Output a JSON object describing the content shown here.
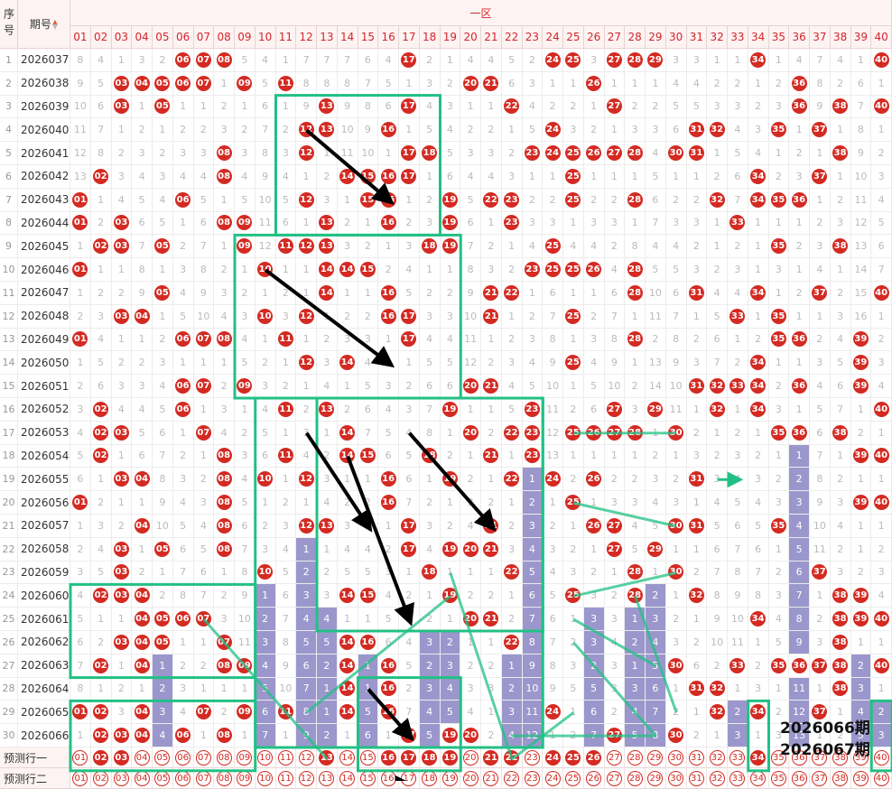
{
  "header": {
    "seq_label": "序号",
    "period_label": "期号",
    "zone_label": "一区",
    "columns": [
      "01",
      "02",
      "03",
      "04",
      "05",
      "06",
      "07",
      "08",
      "09",
      "10",
      "11",
      "12",
      "13",
      "14",
      "15",
      "16",
      "17",
      "18",
      "19",
      "20",
      "21",
      "22",
      "23",
      "24",
      "25",
      "26",
      "27",
      "28",
      "29",
      "30",
      "31",
      "32",
      "33",
      "34",
      "35",
      "36",
      "37",
      "38",
      "39",
      "40"
    ]
  },
  "rows": [
    {
      "seq": "1",
      "period": "2026037",
      "cells": [
        8,
        4,
        1,
        3,
        2,
        "06",
        "07",
        "08",
        5,
        4,
        1,
        7,
        7,
        7,
        6,
        4,
        "17",
        2,
        1,
        4,
        4,
        5,
        2,
        "24",
        "25",
        3,
        "27",
        "28",
        "29",
        3,
        3,
        1,
        1,
        "34",
        1,
        4,
        7,
        4,
        1,
        "40"
      ]
    },
    {
      "seq": "2",
      "period": "2026038",
      "cells": [
        9,
        5,
        "03",
        "04",
        "05",
        "06",
        "07",
        1,
        "09",
        5,
        "11",
        8,
        8,
        8,
        7,
        5,
        1,
        3,
        2,
        "20",
        "21",
        6,
        3,
        1,
        1,
        "26",
        1,
        1,
        1,
        4,
        4,
        2,
        2,
        1,
        2,
        "36",
        8,
        2,
        6,
        1
      ]
    },
    {
      "seq": "3",
      "period": "2026039",
      "cells": [
        10,
        6,
        "03",
        1,
        "05",
        1,
        1,
        2,
        1,
        6,
        1,
        9,
        "13",
        9,
        8,
        6,
        "17",
        4,
        3,
        1,
        1,
        "22",
        4,
        2,
        2,
        1,
        "27",
        2,
        2,
        5,
        5,
        3,
        3,
        2,
        3,
        "36",
        9,
        "38",
        7,
        "40"
      ]
    },
    {
      "seq": "4",
      "period": "2026040",
      "cells": [
        11,
        7,
        1,
        2,
        1,
        2,
        2,
        3,
        2,
        7,
        2,
        "12",
        "13",
        10,
        9,
        "16",
        1,
        5,
        4,
        2,
        2,
        1,
        5,
        "24",
        3,
        2,
        1,
        3,
        3,
        6,
        "31",
        "32",
        4,
        3,
        "35",
        1,
        "37",
        1,
        8,
        1
      ]
    },
    {
      "seq": "5",
      "period": "2026041",
      "cells": [
        12,
        8,
        2,
        3,
        2,
        3,
        3,
        "08",
        3,
        8,
        3,
        "12",
        1,
        11,
        10,
        1,
        "17",
        "18",
        5,
        3,
        3,
        2,
        "23",
        "24",
        "25",
        "26",
        "27",
        "28",
        4,
        "30",
        "31",
        1,
        5,
        4,
        1,
        2,
        1,
        "38",
        9,
        2
      ]
    },
    {
      "seq": "6",
      "period": "2026042",
      "cells": [
        13,
        "02",
        3,
        4,
        3,
        4,
        4,
        "08",
        4,
        9,
        4,
        1,
        2,
        "14",
        "15",
        "16",
        "17",
        1,
        6,
        4,
        4,
        3,
        1,
        1,
        "25",
        1,
        1,
        1,
        5,
        1,
        1,
        2,
        6,
        "34",
        2,
        3,
        "37",
        1,
        10,
        3
      ]
    },
    {
      "seq": "7",
      "period": "2026043",
      "cells": [
        "01",
        1,
        4,
        5,
        4,
        "06",
        5,
        1,
        5,
        10,
        5,
        "12",
        3,
        1,
        "15",
        "16",
        1,
        2,
        "19",
        5,
        "22",
        "23",
        2,
        2,
        "25",
        2,
        2,
        "28",
        6,
        2,
        2,
        "32",
        7,
        "34",
        "35",
        "36",
        1,
        2,
        11,
        4
      ]
    },
    {
      "seq": "8",
      "period": "2026044",
      "cells": [
        "01",
        2,
        "03",
        6,
        5,
        1,
        6,
        "08",
        "09",
        11,
        6,
        1,
        "13",
        2,
        1,
        "16",
        2,
        3,
        "19",
        6,
        1,
        "23",
        3,
        3,
        1,
        3,
        3,
        1,
        7,
        3,
        3,
        1,
        "33",
        1,
        1,
        1,
        2,
        3,
        12,
        5
      ]
    },
    {
      "seq": "9",
      "period": "2026045",
      "cells": [
        1,
        "02",
        "03",
        7,
        "05",
        2,
        7,
        1,
        "09",
        12,
        "11",
        "12",
        "13",
        3,
        2,
        1,
        3,
        "18",
        "19",
        7,
        2,
        1,
        4,
        "25",
        4,
        4,
        2,
        8,
        4,
        4,
        2,
        1,
        2,
        1,
        "35",
        2,
        3,
        "38",
        13,
        6
      ]
    },
    {
      "seq": "10",
      "period": "2026046",
      "cells": [
        "01",
        1,
        1,
        8,
        1,
        3,
        8,
        2,
        1,
        "10",
        1,
        1,
        "14",
        "14",
        "15",
        2,
        4,
        1,
        1,
        8,
        3,
        2,
        "23",
        "25",
        "25",
        "26",
        4,
        "28",
        5,
        5,
        3,
        2,
        3,
        1,
        3,
        1,
        4,
        1,
        14,
        7
      ]
    },
    {
      "seq": "11",
      "period": "2026047",
      "cells": [
        1,
        2,
        2,
        9,
        "05",
        4,
        9,
        3,
        2,
        1,
        2,
        1,
        "14",
        1,
        1,
        "16",
        5,
        2,
        2,
        9,
        "21",
        "22",
        1,
        6,
        1,
        1,
        6,
        "28",
        10,
        6,
        "31",
        4,
        4,
        "34",
        1,
        2,
        "37",
        2,
        15,
        "40"
      ]
    },
    {
      "seq": "12",
      "period": "2026048",
      "cells": [
        2,
        3,
        "03",
        "04",
        1,
        5,
        10,
        4,
        3,
        "10",
        3,
        "12",
        1,
        2,
        2,
        "16",
        "17",
        3,
        3,
        10,
        "21",
        1,
        2,
        7,
        "25",
        2,
        7,
        1,
        11,
        7,
        1,
        5,
        "33",
        1,
        "35",
        1,
        1,
        3,
        16,
        1
      ]
    },
    {
      "seq": "13",
      "period": "2026049",
      "cells": [
        "01",
        4,
        1,
        1,
        2,
        "06",
        "07",
        "08",
        4,
        1,
        "11",
        1,
        2,
        3,
        3,
        1,
        "17",
        4,
        4,
        11,
        1,
        2,
        3,
        8,
        1,
        3,
        8,
        "28",
        2,
        8,
        2,
        6,
        1,
        2,
        "35",
        "36",
        2,
        4,
        "39",
        2
      ]
    },
    {
      "seq": "14",
      "period": "2026050",
      "cells": [
        1,
        5,
        2,
        2,
        3,
        1,
        1,
        1,
        5,
        2,
        1,
        "12",
        3,
        "14",
        4,
        2,
        1,
        5,
        5,
        12,
        2,
        3,
        4,
        9,
        "25",
        4,
        9,
        1,
        13,
        9,
        3,
        7,
        2,
        "34",
        1,
        1,
        3,
        5,
        "39",
        3
      ]
    },
    {
      "seq": "15",
      "period": "2026051",
      "cells": [
        2,
        6,
        3,
        3,
        4,
        "06",
        "07",
        2,
        "09",
        3,
        2,
        1,
        4,
        1,
        5,
        3,
        2,
        6,
        6,
        "20",
        "21",
        4,
        5,
        10,
        1,
        5,
        10,
        2,
        14,
        10,
        "31",
        "32",
        "33",
        "34",
        2,
        "36",
        4,
        6,
        "39",
        4
      ]
    },
    {
      "seq": "16",
      "period": "2026052",
      "cells": [
        3,
        "02",
        4,
        4,
        5,
        "06",
        1,
        3,
        1,
        4,
        "11",
        2,
        "13",
        2,
        6,
        4,
        3,
        7,
        "19",
        1,
        1,
        5,
        "23",
        11,
        2,
        6,
        "27",
        3,
        "29",
        11,
        1,
        "32",
        1,
        "34",
        3,
        1,
        5,
        7,
        1,
        "40"
      ]
    },
    {
      "seq": "17",
      "period": "2026053",
      "cells": [
        4,
        "02",
        "03",
        5,
        6,
        1,
        "07",
        4,
        2,
        5,
        1,
        3,
        1,
        "14",
        7,
        5,
        4,
        8,
        1,
        "20",
        2,
        "22",
        "23",
        12,
        "25",
        "26",
        "27",
        "28",
        1,
        "30",
        2,
        1,
        2,
        1,
        "35",
        "36",
        6,
        "38",
        2,
        1
      ]
    },
    {
      "seq": "18",
      "period": "2026054",
      "cells": [
        5,
        "02",
        1,
        6,
        7,
        2,
        1,
        "08",
        3,
        6,
        "11",
        4,
        2,
        "14",
        "15",
        6,
        5,
        "18",
        2,
        1,
        "21",
        1,
        "23",
        13,
        1,
        1,
        1,
        1,
        2,
        1,
        3,
        2,
        3,
        2,
        1,
        1,
        7,
        1,
        "39",
        "40"
      ]
    },
    {
      "seq": "19",
      "period": "2026055",
      "cells": [
        6,
        1,
        "03",
        "04",
        8,
        3,
        2,
        "08",
        4,
        "10",
        1,
        "12",
        3,
        1,
        1,
        "16",
        6,
        1,
        "19",
        2,
        1,
        "22",
        1,
        "24",
        2,
        "26",
        2,
        2,
        3,
        2,
        "31",
        3,
        4,
        3,
        2,
        2,
        8,
        2,
        1,
        1
      ]
    },
    {
      "seq": "20",
      "period": "2026056",
      "cells": [
        "01",
        2,
        1,
        1,
        9,
        4,
        3,
        "08",
        5,
        1,
        2,
        1,
        4,
        2,
        2,
        "16",
        7,
        2,
        1,
        3,
        2,
        1,
        2,
        1,
        "25",
        1,
        3,
        3,
        4,
        3,
        1,
        4,
        5,
        4,
        3,
        3,
        9,
        3,
        "39",
        "40"
      ]
    },
    {
      "seq": "21",
      "period": "2026057",
      "cells": [
        1,
        3,
        2,
        "04",
        10,
        5,
        4,
        "08",
        6,
        2,
        3,
        "12",
        "13",
        3,
        3,
        1,
        "17",
        3,
        2,
        4,
        "21",
        2,
        3,
        2,
        1,
        "26",
        "27",
        4,
        5,
        "30",
        "31",
        5,
        6,
        5,
        "35",
        4,
        10,
        4,
        1,
        1
      ]
    },
    {
      "seq": "22",
      "period": "2026058",
      "cells": [
        2,
        4,
        "03",
        1,
        "05",
        6,
        5,
        "08",
        7,
        3,
        4,
        1,
        1,
        4,
        4,
        2,
        "17",
        4,
        "19",
        "20",
        "21",
        3,
        4,
        3,
        2,
        1,
        "27",
        5,
        "29",
        1,
        1,
        6,
        7,
        6,
        1,
        5,
        11,
        2,
        1,
        2
      ]
    },
    {
      "seq": "23",
      "period": "2026059",
      "cells": [
        3,
        5,
        "03",
        2,
        1,
        7,
        6,
        1,
        8,
        "10",
        5,
        2,
        2,
        5,
        5,
        3,
        1,
        "18",
        1,
        1,
        1,
        "22",
        5,
        4,
        3,
        2,
        1,
        "28",
        1,
        "30",
        2,
        7,
        8,
        7,
        2,
        6,
        "37",
        3,
        2,
        3
      ]
    },
    {
      "seq": "24",
      "period": "2026060",
      "cells": [
        4,
        "02",
        "03",
        "04",
        2,
        8,
        7,
        2,
        9,
        1,
        6,
        3,
        3,
        "14",
        "15",
        4,
        2,
        1,
        "19",
        2,
        2,
        1,
        6,
        5,
        "25",
        3,
        2,
        "28",
        2,
        1,
        "32",
        8,
        9,
        8,
        3,
        7,
        1,
        "38",
        "39",
        4
      ]
    },
    {
      "seq": "25",
      "period": "2026061",
      "cells": [
        5,
        1,
        1,
        "04",
        "05",
        "06",
        "07",
        3,
        10,
        2,
        7,
        4,
        4,
        1,
        1,
        5,
        3,
        2,
        1,
        "20",
        "21",
        2,
        7,
        6,
        1,
        3,
        3,
        1,
        3,
        2,
        1,
        9,
        10,
        "34",
        4,
        8,
        2,
        "38",
        "39",
        "40"
      ]
    },
    {
      "seq": "26",
      "period": "2026062",
      "cells": [
        6,
        2,
        "03",
        "04",
        "05",
        1,
        1,
        "07",
        11,
        3,
        8,
        5,
        5,
        "14",
        "16",
        6,
        4,
        3,
        2,
        1,
        1,
        "22",
        8,
        7,
        2,
        3,
        4,
        2,
        4,
        3,
        2,
        10,
        11,
        1,
        5,
        9,
        3,
        "38",
        1,
        1
      ]
    },
    {
      "seq": "27",
      "period": "2026063",
      "cells": [
        7,
        "02",
        1,
        "04",
        1,
        2,
        2,
        "08",
        "09",
        4,
        9,
        6,
        2,
        "14",
        1,
        "16",
        5,
        2,
        3,
        2,
        2,
        1,
        9,
        8,
        3,
        2,
        3,
        1,
        5,
        "30",
        6,
        2,
        "33",
        2,
        "35",
        "36",
        "37",
        "38",
        2,
        "40"
      ]
    },
    {
      "seq": "28",
      "period": "2026064",
      "cells": [
        8,
        1,
        2,
        1,
        2,
        3,
        1,
        1,
        1,
        5,
        10,
        7,
        1,
        "14",
        1,
        "16",
        2,
        3,
        4,
        3,
        3,
        2,
        10,
        9,
        5,
        5,
        3,
        3,
        6,
        1,
        "31",
        "32",
        1,
        3,
        1,
        11,
        1,
        "38",
        3,
        1
      ]
    },
    {
      "seq": "29",
      "period": "2026065",
      "cells": [
        "01",
        "02",
        3,
        "04",
        3,
        4,
        "07",
        2,
        "09",
        6,
        "11",
        8,
        1,
        "14",
        5,
        "16",
        7,
        4,
        5,
        4,
        1,
        3,
        11,
        "24",
        1,
        6,
        2,
        4,
        7,
        2,
        1,
        "32",
        2,
        "34",
        2,
        12,
        "37",
        1,
        4,
        2
      ]
    },
    {
      "seq": "30",
      "period": "2026066",
      "cells": [
        1,
        "02",
        "03",
        "04",
        4,
        "06",
        1,
        "08",
        1,
        7,
        1,
        9,
        2,
        1,
        6,
        1,
        "17",
        5,
        "19",
        "20",
        2,
        4,
        12,
        1,
        2,
        7,
        "27",
        5,
        8,
        "30",
        2,
        1,
        3,
        1,
        3,
        13,
        1,
        2,
        5,
        3
      ]
    }
  ],
  "miss_bars": [
    {
      "col": 5,
      "start": 26,
      "end": 29
    },
    {
      "col": 10,
      "start": 23,
      "end": 29
    },
    {
      "col": 12,
      "start": 21,
      "end": 29
    },
    {
      "col": 13,
      "start": 24,
      "end": 29
    },
    {
      "col": 15,
      "start": 25,
      "end": 29
    },
    {
      "col": 18,
      "start": 25,
      "end": 29
    },
    {
      "col": 19,
      "start": 25,
      "end": 29
    },
    {
      "col": 22,
      "start": 26,
      "end": 29
    },
    {
      "col": 23,
      "start": 18,
      "end": 29
    },
    {
      "col": 26,
      "start": 24,
      "end": 29
    },
    {
      "col": 28,
      "start": 24,
      "end": 29
    },
    {
      "col": 29,
      "start": 23,
      "end": 29
    },
    {
      "col": 33,
      "start": 28,
      "end": 29
    },
    {
      "col": 36,
      "start": 17,
      "end": 29
    },
    {
      "col": 39,
      "start": 26,
      "end": 29
    },
    {
      "col": 40,
      "start": 28,
      "end": 29
    }
  ],
  "predictions": [
    {
      "label": "预测行一",
      "on": [
        "02",
        "03",
        "13",
        "16",
        "17",
        "18",
        "19",
        "21",
        "22",
        "24",
        "25",
        "26",
        "34"
      ]
    },
    {
      "label": "预测行二",
      "on": []
    }
  ],
  "captions": {
    "period_a": "2026066期",
    "period_b": "2026067期"
  },
  "colors": {
    "ball": "#d42a22",
    "miss_bar": "#9b97cc",
    "frame": "#22c084",
    "arrow": "#000000"
  }
}
